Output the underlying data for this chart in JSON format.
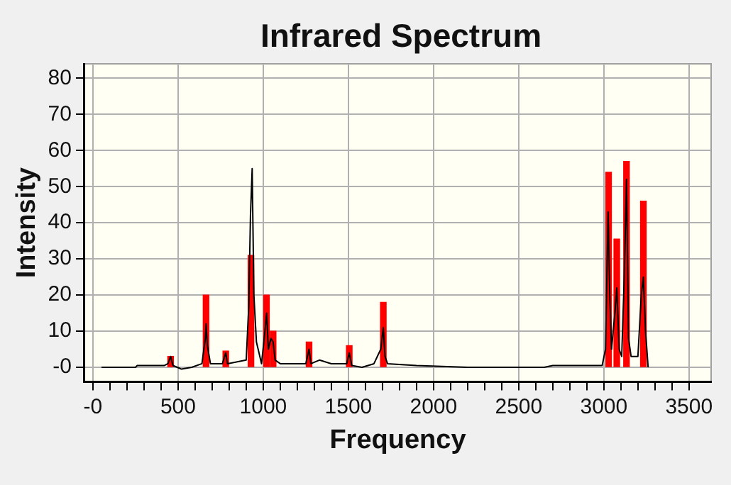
{
  "chart_data": {
    "type": "line",
    "title": "Infrared Spectrum",
    "xlabel": "Frequency",
    "ylabel": "Intensity",
    "xlim": [
      -50,
      3630
    ],
    "ylim": [
      -4,
      84
    ],
    "xticks": [
      {
        "value": 0,
        "label": "-0"
      },
      {
        "value": 100,
        "label": null
      },
      {
        "value": 200,
        "label": null
      },
      {
        "value": 300,
        "label": null
      },
      {
        "value": 400,
        "label": null
      },
      500,
      {
        "value": 600,
        "label": null
      },
      {
        "value": 700,
        "label": null
      },
      {
        "value": 800,
        "label": null
      },
      {
        "value": 900,
        "label": null
      },
      1000,
      {
        "value": 1100,
        "label": null
      },
      {
        "value": 1200,
        "label": null
      },
      {
        "value": 1300,
        "label": null
      },
      {
        "value": 1400,
        "label": null
      },
      1500,
      {
        "value": 1600,
        "label": null
      },
      {
        "value": 1700,
        "label": null
      },
      {
        "value": 1800,
        "label": null
      },
      {
        "value": 1900,
        "label": null
      },
      2000,
      {
        "value": 2100,
        "label": null
      },
      {
        "value": 2200,
        "label": null
      },
      {
        "value": 2300,
        "label": null
      },
      {
        "value": 2400,
        "label": null
      },
      2500,
      {
        "value": 2600,
        "label": null
      },
      {
        "value": 2700,
        "label": null
      },
      {
        "value": 2800,
        "label": null
      },
      {
        "value": 2900,
        "label": null
      },
      3000,
      {
        "value": 3100,
        "label": null
      },
      {
        "value": 3200,
        "label": null
      },
      {
        "value": 3300,
        "label": null
      },
      {
        "value": 3400,
        "label": null
      },
      3500
    ],
    "yticks": [
      {
        "value": 0,
        "label": "-0"
      },
      10,
      20,
      30,
      40,
      50,
      60,
      70,
      80
    ],
    "grid": true,
    "legend": false,
    "marker": "none",
    "line_style": "solid",
    "series": [
      {
        "type": "bar",
        "color": "#ff0000",
        "x": [
          456,
          664,
          780,
          928,
          1019,
          1058,
          1269,
          1505,
          1705,
          3028,
          3076,
          3133,
          3232
        ],
        "values": [
          3,
          20,
          4.5,
          31,
          20,
          10,
          7,
          6,
          18,
          54,
          35.5,
          57,
          46
        ]
      },
      {
        "color": "#000000",
        "x": [
          50,
          250,
          260,
          420,
          440,
          456,
          470,
          520,
          580,
          640,
          660,
          664,
          672,
          690,
          760,
          780,
          790,
          900,
          915,
          925,
          935,
          945,
          960,
          990,
          1010,
          1020,
          1030,
          1045,
          1058,
          1070,
          1100,
          1250,
          1269,
          1280,
          1330,
          1400,
          1490,
          1505,
          1520,
          1580,
          1650,
          1690,
          1705,
          1715,
          1730,
          1900,
          2200,
          2650,
          2700,
          2990,
          3010,
          3025,
          3035,
          3045,
          3065,
          3076,
          3090,
          3105,
          3120,
          3133,
          3145,
          3160,
          3200,
          3220,
          3232,
          3245,
          3260
        ],
        "values": [
          0,
          0,
          0.5,
          0.5,
          1,
          3,
          0.5,
          -0.5,
          0,
          1,
          8,
          12,
          6,
          1,
          1,
          4,
          1,
          2,
          17,
          42,
          55,
          20,
          7,
          1,
          10,
          15,
          5,
          8,
          7,
          2,
          1,
          1,
          5,
          1,
          2,
          1,
          1,
          4,
          0.5,
          0,
          1,
          5,
          11,
          3,
          1,
          0.5,
          0,
          0,
          0.5,
          0.5,
          5,
          43,
          20,
          5,
          15,
          22,
          5,
          3,
          25,
          52,
          8,
          3,
          3,
          20,
          25,
          10,
          0
        ]
      }
    ]
  }
}
